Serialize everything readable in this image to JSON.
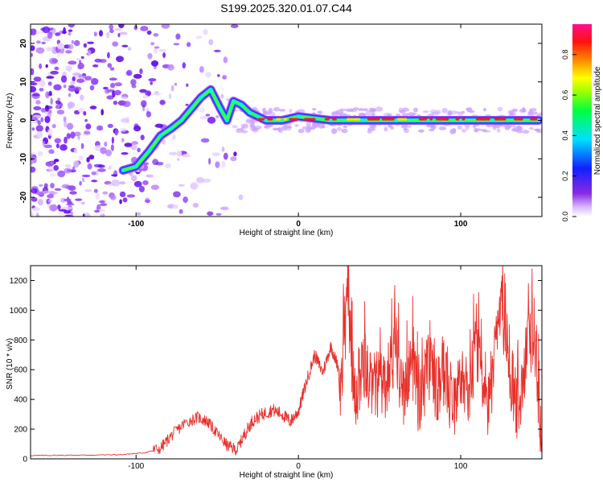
{
  "title": "S199.2025.320.01.07.C44",
  "colors": {
    "snr_line": "#e8302a",
    "spectrogram_ridge": "#ff1a1a",
    "noise": "#8a2be2",
    "axis": "#000000"
  },
  "chart_data": [
    {
      "type": "heatmap",
      "panel": "spectrogram",
      "title": "S199.2025.320.01.07.C44",
      "xlabel": "Height of straight line (km)",
      "ylabel": "Frequency (Hz)",
      "xlim": [
        -165,
        150
      ],
      "ylim": [
        -25,
        25
      ],
      "xticks": [
        -100,
        0,
        100
      ],
      "yticks": [
        -20,
        -10,
        0,
        10,
        20
      ],
      "colorbar": {
        "label": "Normalized spectral amplitude",
        "range": [
          0,
          0.95
        ],
        "ticks": [
          0.0,
          0.2,
          0.4,
          0.6,
          0.8
        ]
      },
      "ridge": {
        "description": "main spectral ridge",
        "x": [
          -108,
          -100,
          -92,
          -85,
          -78,
          -72,
          -66,
          -60,
          -54,
          -48,
          -44,
          -40,
          -35,
          -30,
          -25,
          -20,
          -10,
          0,
          20,
          40,
          60,
          80,
          100,
          120,
          148
        ],
        "y": [
          -13,
          -12,
          -8,
          -4,
          -2,
          0,
          3,
          6,
          8,
          3,
          0,
          5,
          4,
          2,
          1,
          0,
          0,
          1,
          0,
          0,
          0,
          0,
          0,
          0,
          0
        ]
      }
    },
    {
      "type": "line",
      "panel": "snr",
      "xlabel": "Height of straight line (km)",
      "ylabel": "SNR (10 * v/v)",
      "xlim": [
        -165,
        150
      ],
      "ylim": [
        0,
        1300
      ],
      "xticks": [
        -100,
        0,
        100
      ],
      "yticks": [
        0,
        200,
        400,
        600,
        800,
        1000,
        1200
      ],
      "series": [
        {
          "name": "SNR",
          "x": [
            -165,
            -150,
            -130,
            -110,
            -95,
            -85,
            -78,
            -70,
            -62,
            -56,
            -50,
            -44,
            -38,
            -33,
            -28,
            -22,
            -16,
            -10,
            -5,
            0,
            5,
            10,
            15,
            20,
            25,
            30,
            35,
            40,
            45,
            50,
            55,
            60,
            65,
            70,
            75,
            80,
            85,
            90,
            95,
            100,
            105,
            110,
            115,
            120,
            125,
            130,
            135,
            140,
            145,
            150
          ],
          "y": [
            22,
            24,
            25,
            28,
            40,
            70,
            160,
            240,
            280,
            250,
            170,
            90,
            60,
            170,
            260,
            300,
            330,
            300,
            250,
            320,
            520,
            700,
            580,
            760,
            600,
            1280,
            650,
            900,
            720,
            760,
            700,
            980,
            640,
            900,
            560,
            880,
            700,
            820,
            600,
            760,
            680,
            1000,
            560,
            800,
            1280,
            820,
            560,
            900,
            1140,
            250
          ]
        }
      ]
    }
  ]
}
